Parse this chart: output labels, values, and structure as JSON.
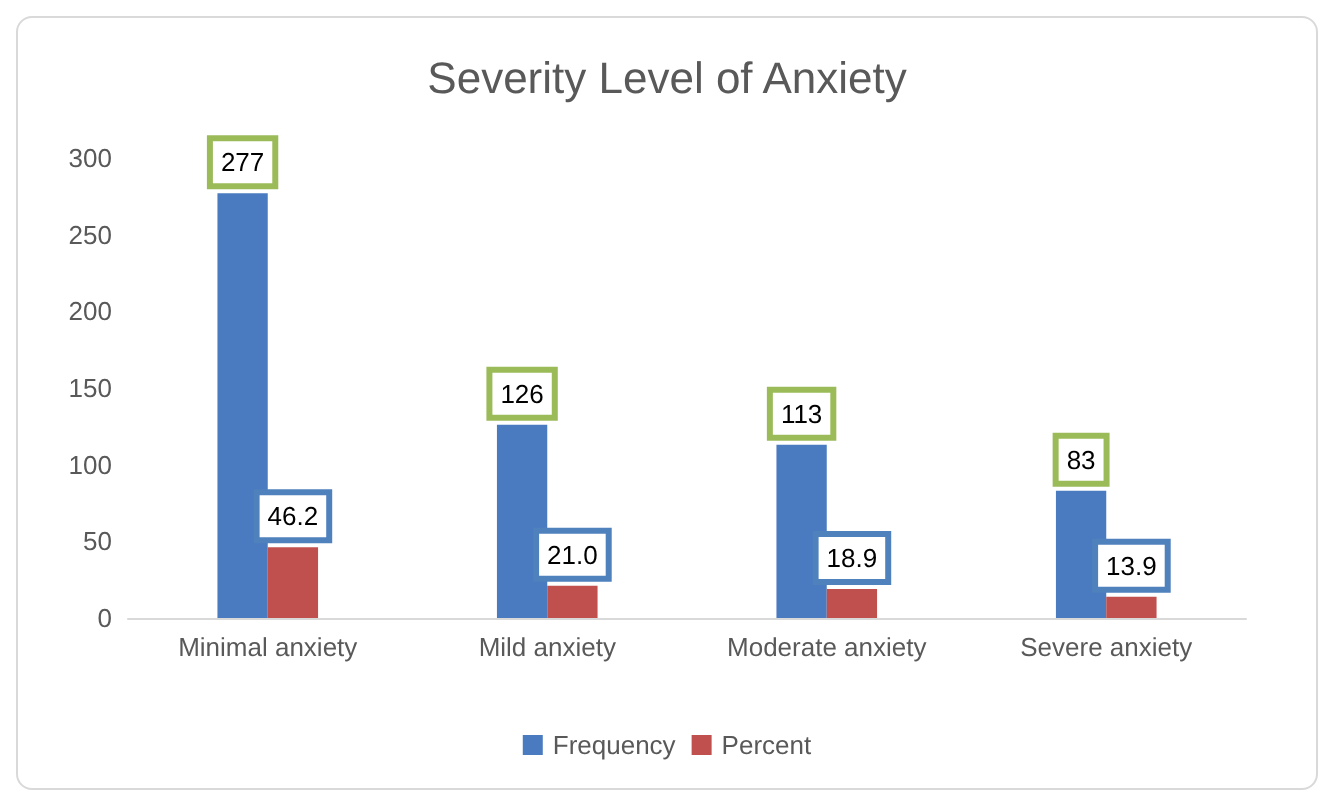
{
  "chart_data": {
    "type": "bar",
    "title": "Severity Level of Anxiety",
    "categories": [
      "Minimal anxiety",
      "Mild anxiety",
      "Moderate anxiety",
      "Severe anxiety"
    ],
    "series": [
      {
        "name": "Frequency",
        "color": "#4a7bc0",
        "values": [
          277,
          126,
          113,
          83
        ],
        "value_labels": [
          "277",
          "126",
          "113",
          "83"
        ]
      },
      {
        "name": "Percent",
        "color": "#c0504d",
        "values": [
          46.2,
          21.0,
          18.9,
          13.9
        ],
        "value_labels": [
          "46.2",
          "21.0",
          "18.9",
          "13.9"
        ]
      }
    ],
    "ylim": [
      0,
      300
    ],
    "yticks": [
      0,
      50,
      100,
      150,
      200,
      250,
      300
    ],
    "grid": false,
    "legend": "bottom"
  }
}
